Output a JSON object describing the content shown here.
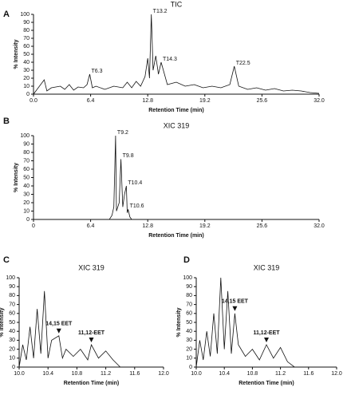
{
  "chart_data": [
    {
      "type": "line",
      "panel": "A",
      "title": "TIC",
      "xlabel": "Retention Time (min)",
      "ylabel": "% Intensity",
      "xlim": [
        0,
        32
      ],
      "xticks": [
        {
          "value": 0,
          "label": "0.0"
        },
        6.4,
        12.8,
        19.2,
        25.6,
        {
          "value": 32,
          "label": "32.0"
        }
      ],
      "ylim": [
        0,
        100
      ],
      "yticks": [
        0,
        10,
        20,
        30,
        40,
        50,
        60,
        70,
        80,
        90,
        100
      ],
      "series": [
        {
          "name": "TIC",
          "color": "#111111",
          "x": [
            0,
            1.2,
            1.5,
            2,
            3,
            3.5,
            4,
            4.5,
            5,
            5.6,
            6,
            6.3,
            6.6,
            7,
            8,
            9,
            10,
            10.5,
            11,
            11.5,
            12,
            12.5,
            12.8,
            13,
            13.2,
            13.4,
            13.7,
            14,
            14.3,
            15,
            16,
            17,
            18,
            19,
            20,
            21,
            22,
            22.5,
            23,
            24,
            25,
            26,
            27,
            28,
            29,
            30,
            31,
            32
          ],
          "values": [
            0,
            18,
            4,
            8,
            10,
            6,
            12,
            5,
            9,
            8,
            12,
            25,
            8,
            10,
            6,
            10,
            8,
            15,
            8,
            16,
            10,
            22,
            45,
            20,
            100,
            30,
            48,
            25,
            40,
            12,
            15,
            10,
            12,
            8,
            10,
            8,
            12,
            35,
            10,
            6,
            8,
            5,
            7,
            4,
            5,
            4,
            2,
            1
          ]
        }
      ],
      "annotations": [
        {
          "text": "T13.2",
          "x": 13.2,
          "y": 100
        },
        {
          "text": "T6.3",
          "x": 6.3,
          "y": 25
        },
        {
          "text": "T14.3",
          "x": 14.3,
          "y": 40
        },
        {
          "text": "T22.5",
          "x": 22.5,
          "y": 35
        }
      ]
    },
    {
      "type": "line",
      "panel": "B",
      "title": "XIC 319",
      "xlabel": "Retention Time (min)",
      "ylabel": "% Intensity",
      "xlim": [
        0,
        32
      ],
      "xticks": [
        0,
        6.4,
        12.8,
        19.2,
        25.6,
        {
          "value": 32,
          "label": "32.0"
        }
      ],
      "ylim": [
        0,
        100
      ],
      "yticks": [
        0,
        10,
        20,
        30,
        40,
        50,
        60,
        70,
        80,
        90,
        100
      ],
      "series": [
        {
          "name": "XIC 319",
          "color": "#111111",
          "x": [
            0,
            8.5,
            8.8,
            9.0,
            9.2,
            9.3,
            9.6,
            9.8,
            10.0,
            10.2,
            10.4,
            10.5,
            10.6,
            10.8,
            11,
            32
          ],
          "values": [
            0,
            0,
            5,
            15,
            100,
            10,
            20,
            72,
            15,
            30,
            40,
            8,
            12,
            3,
            0,
            0
          ]
        }
      ],
      "annotations": [
        {
          "text": "T9.2",
          "x": 9.2,
          "y": 100
        },
        {
          "text": "T9.8",
          "x": 9.8,
          "y": 72
        },
        {
          "text": "T10.4",
          "x": 10.4,
          "y": 40
        },
        {
          "text": "T10.6",
          "x": 10.6,
          "y": 12
        }
      ]
    },
    {
      "type": "line",
      "panel": "C",
      "title": "XIC 319",
      "xlabel": "Retention Time (min)",
      "ylabel": "% Intensity",
      "xlim": [
        10,
        12
      ],
      "xticks": [
        {
          "value": 10,
          "label": "10.0"
        },
        10.4,
        10.8,
        11.2,
        11.6,
        {
          "value": 12,
          "label": "12.0"
        }
      ],
      "ylim": [
        0,
        100
      ],
      "yticks": [
        0,
        10,
        20,
        30,
        40,
        50,
        60,
        70,
        80,
        90,
        100
      ],
      "series": [
        {
          "name": "XIC 319",
          "color": "#111111",
          "x": [
            10,
            10.05,
            10.1,
            10.15,
            10.2,
            10.25,
            10.3,
            10.35,
            10.4,
            10.45,
            10.55,
            10.6,
            10.65,
            10.75,
            10.85,
            10.95,
            11.0,
            11.1,
            11.2,
            11.3,
            11.4,
            12
          ],
          "values": [
            0,
            25,
            8,
            45,
            10,
            65,
            15,
            85,
            10,
            30,
            35,
            10,
            20,
            12,
            20,
            8,
            25,
            10,
            18,
            8,
            0,
            0
          ]
        }
      ],
      "annotations": [
        {
          "text": "14,15 EET",
          "x": 10.55,
          "y": 35
        },
        {
          "text": "11,12-EET",
          "x": 11.0,
          "y": 25
        }
      ]
    },
    {
      "type": "line",
      "panel": "D",
      "title": "XIC 319",
      "xlabel": "Retention Time (min)",
      "ylabel": "% Intensity",
      "xlim": [
        10,
        12
      ],
      "xticks": [
        {
          "value": 10,
          "label": "10.0"
        },
        10.4,
        10.8,
        11.2,
        11.6,
        {
          "value": 12,
          "label": "12.0"
        }
      ],
      "ylim": [
        0,
        100
      ],
      "yticks": [
        0,
        10,
        20,
        30,
        40,
        50,
        60,
        70,
        80,
        90,
        100
      ],
      "series": [
        {
          "name": "XIC 319",
          "color": "#111111",
          "x": [
            10,
            10.05,
            10.1,
            10.15,
            10.2,
            10.25,
            10.3,
            10.35,
            10.4,
            10.45,
            10.5,
            10.55,
            10.6,
            10.7,
            10.8,
            10.9,
            11.0,
            11.1,
            11.2,
            11.3,
            11.4,
            12
          ],
          "values": [
            0,
            30,
            8,
            40,
            12,
            60,
            15,
            100,
            20,
            85,
            15,
            60,
            25,
            12,
            20,
            8,
            25,
            10,
            22,
            6,
            0,
            0
          ]
        }
      ],
      "annotations": [
        {
          "text": "14,15 EET",
          "x": 10.55,
          "y": 60
        },
        {
          "text": "11,12-EET",
          "x": 11.0,
          "y": 25
        }
      ]
    }
  ]
}
